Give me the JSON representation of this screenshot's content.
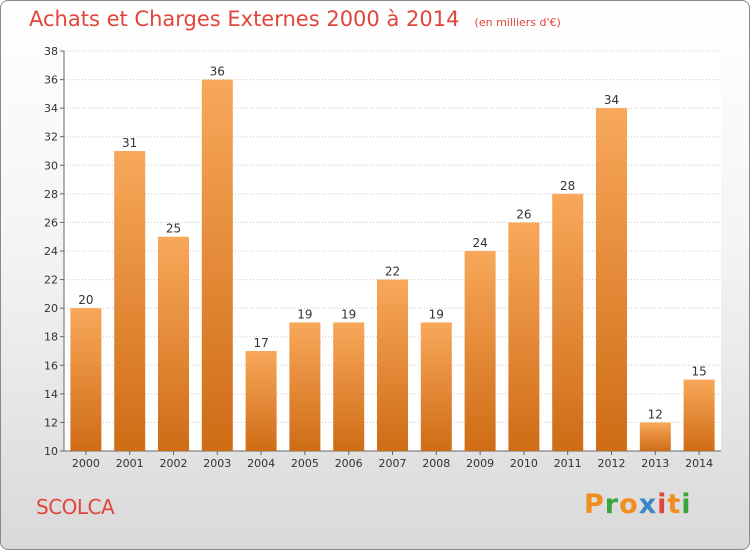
{
  "header": {
    "title": "Achats et Charges Externes 2000 à 2014",
    "unit": "(en milliers d'€)"
  },
  "footer": {
    "commune": "SCOLCA",
    "logo": {
      "letters": [
        "P",
        "r",
        "o",
        "x",
        "i",
        "t",
        "i"
      ],
      "colors": [
        "#f28c1e",
        "#3aa53a",
        "#f28c1e",
        "#3a86c8",
        "#e2453c",
        "#f28c1e",
        "#3aa53a"
      ]
    }
  },
  "colors": {
    "bar_light": "#f8a85a",
    "bar_dark": "#cf6c16",
    "grid": "#c8c8c8",
    "text": "#333333"
  },
  "chart_data": {
    "type": "bar",
    "title": "Achats et Charges Externes 2000 à 2014",
    "categories": [
      "2000",
      "2001",
      "2002",
      "2003",
      "2004",
      "2005",
      "2006",
      "2007",
      "2008",
      "2009",
      "2010",
      "2011",
      "2012",
      "2013",
      "2014"
    ],
    "values": [
      20,
      31,
      25,
      36,
      17,
      19,
      19,
      22,
      19,
      24,
      26,
      28,
      34,
      12,
      15
    ],
    "ylim": [
      10,
      38
    ],
    "yticks": [
      10,
      12,
      14,
      16,
      18,
      20,
      22,
      24,
      26,
      28,
      30,
      32,
      34,
      36,
      38
    ],
    "grid": true,
    "data_labels": true
  }
}
